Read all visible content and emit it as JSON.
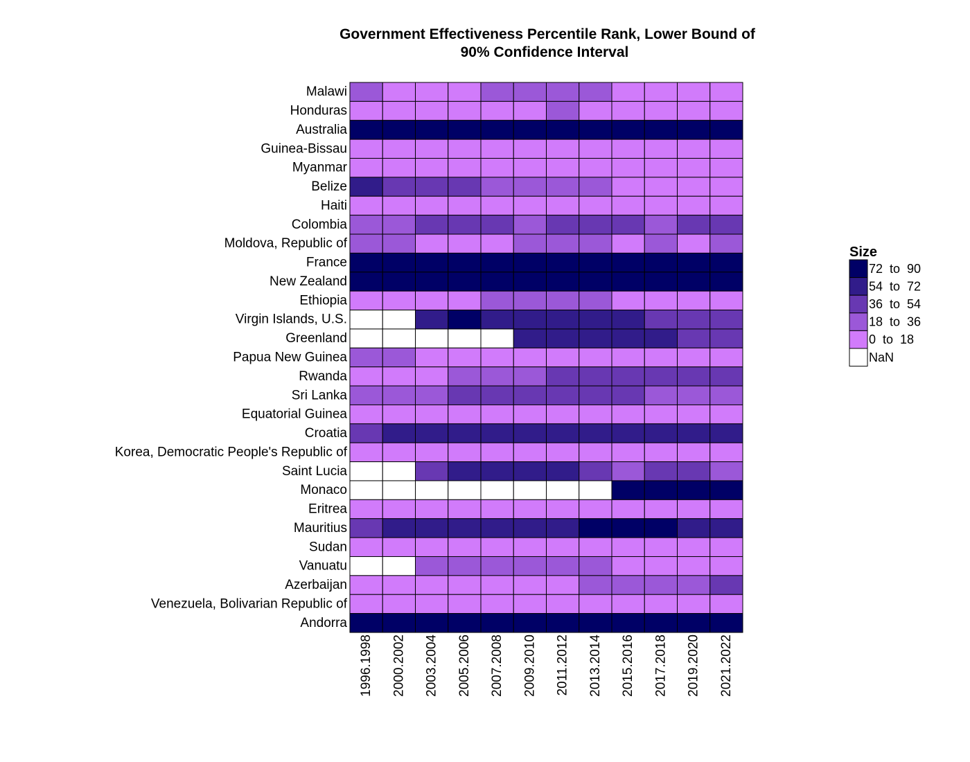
{
  "chart_data": {
    "type": "heatmap",
    "title": [
      "Government Effectiveness Percentile Rank, Lower Bound of",
      "90% Confidence Interval"
    ],
    "columns": [
      "1996.1998",
      "2000.2002",
      "2003.2004",
      "2005.2006",
      "2007.2008",
      "2009.2010",
      "2011.2012",
      "2013.2014",
      "2015.2016",
      "2017.2018",
      "2019.2020",
      "2021.2022"
    ],
    "rows": [
      "Malawi",
      "Honduras",
      "Australia",
      "Guinea-Bissau",
      "Myanmar",
      "Belize",
      "Haiti",
      "Colombia",
      "Moldova, Republic of",
      "France",
      "New Zealand",
      "Ethiopia",
      "Virgin Islands, U.S.",
      "Greenland",
      "Papua New Guinea",
      "Rwanda",
      "Sri Lanka",
      "Equatorial Guinea",
      "Croatia",
      "Korea, Democratic People's Republic of",
      "Saint Lucia",
      "Monaco",
      "Eritrea",
      "Mauritius",
      "Sudan",
      "Vanuatu",
      "Azerbaijan",
      "Venezuela, Bolivarian Republic of",
      "Andorra"
    ],
    "values": [
      [
        1,
        0,
        0,
        0,
        1,
        1,
        1,
        1,
        0,
        0,
        0,
        0
      ],
      [
        0,
        0,
        0,
        0,
        0,
        0,
        1,
        0,
        0,
        0,
        0,
        0
      ],
      [
        4,
        4,
        4,
        4,
        4,
        4,
        4,
        4,
        4,
        4,
        4,
        4
      ],
      [
        0,
        0,
        0,
        0,
        0,
        0,
        0,
        0,
        0,
        0,
        0,
        0
      ],
      [
        0,
        0,
        0,
        0,
        0,
        0,
        0,
        0,
        0,
        0,
        0,
        0
      ],
      [
        3,
        2,
        2,
        2,
        1,
        1,
        1,
        1,
        0,
        0,
        0,
        0
      ],
      [
        0,
        0,
        0,
        0,
        0,
        0,
        0,
        0,
        0,
        0,
        0,
        0
      ],
      [
        1,
        1,
        2,
        2,
        2,
        1,
        2,
        2,
        2,
        1,
        2,
        2
      ],
      [
        1,
        1,
        0,
        0,
        0,
        1,
        1,
        1,
        0,
        1,
        0,
        1
      ],
      [
        4,
        4,
        4,
        4,
        4,
        4,
        4,
        4,
        4,
        4,
        4,
        4
      ],
      [
        4,
        4,
        4,
        4,
        4,
        4,
        4,
        4,
        4,
        4,
        4,
        4
      ],
      [
        0,
        0,
        0,
        0,
        1,
        1,
        1,
        1,
        0,
        0,
        0,
        0
      ],
      [
        -1,
        -1,
        3,
        4,
        3,
        3,
        3,
        3,
        3,
        2,
        2,
        2
      ],
      [
        -1,
        -1,
        -1,
        -1,
        -1,
        3,
        3,
        3,
        3,
        3,
        2,
        2
      ],
      [
        1,
        1,
        0,
        0,
        0,
        0,
        0,
        0,
        0,
        0,
        0,
        0
      ],
      [
        0,
        0,
        0,
        1,
        1,
        1,
        2,
        2,
        2,
        2,
        2,
        2
      ],
      [
        1,
        1,
        1,
        2,
        2,
        2,
        2,
        2,
        2,
        1,
        1,
        1
      ],
      [
        0,
        0,
        0,
        0,
        0,
        0,
        0,
        0,
        0,
        0,
        0,
        0
      ],
      [
        2,
        3,
        3,
        3,
        3,
        3,
        3,
        3,
        3,
        3,
        3,
        3
      ],
      [
        0,
        0,
        0,
        0,
        0,
        0,
        0,
        0,
        0,
        0,
        0,
        0
      ],
      [
        -1,
        -1,
        2,
        3,
        3,
        3,
        3,
        2,
        1,
        2,
        2,
        1
      ],
      [
        -1,
        -1,
        -1,
        -1,
        -1,
        -1,
        -1,
        -1,
        4,
        4,
        4,
        4
      ],
      [
        0,
        0,
        0,
        0,
        0,
        0,
        0,
        0,
        0,
        0,
        0,
        0
      ],
      [
        2,
        3,
        3,
        3,
        3,
        3,
        3,
        4,
        4,
        4,
        3,
        3
      ],
      [
        0,
        0,
        0,
        0,
        0,
        0,
        0,
        0,
        0,
        0,
        0,
        0
      ],
      [
        -1,
        -1,
        1,
        1,
        1,
        1,
        1,
        1,
        0,
        0,
        0,
        0
      ],
      [
        0,
        0,
        0,
        0,
        0,
        0,
        0,
        1,
        1,
        1,
        1,
        2
      ],
      [
        0,
        0,
        0,
        0,
        0,
        0,
        0,
        0,
        0,
        0,
        0,
        0
      ],
      [
        4,
        4,
        4,
        4,
        4,
        4,
        4,
        4,
        4,
        4,
        4,
        4
      ]
    ],
    "value_encoding": "bin index: 0 = 0 to 18, 1 = 18 to 36, 2 = 36 to 54, 3 = 54 to 72, 4 = 72 to 90, -1 = NaN",
    "legend": {
      "title": "Size",
      "placement": "right",
      "bins": [
        {
          "label": "72  to  90",
          "color": "#000066"
        },
        {
          "label": "54  to  72",
          "color": "#311c8a"
        },
        {
          "label": "36  to  54",
          "color": "#6838b2"
        },
        {
          "label": "18  to  36",
          "color": "#9b58d8"
        },
        {
          "label": "0  to  18",
          "color": "#d17bfb"
        },
        {
          "label": "NaN",
          "color": "#ffffff"
        }
      ]
    },
    "bin_colors": [
      "#d17bfb",
      "#9b58d8",
      "#6838b2",
      "#311c8a",
      "#000066"
    ],
    "nan_color": "#ffffff",
    "grid": false
  }
}
